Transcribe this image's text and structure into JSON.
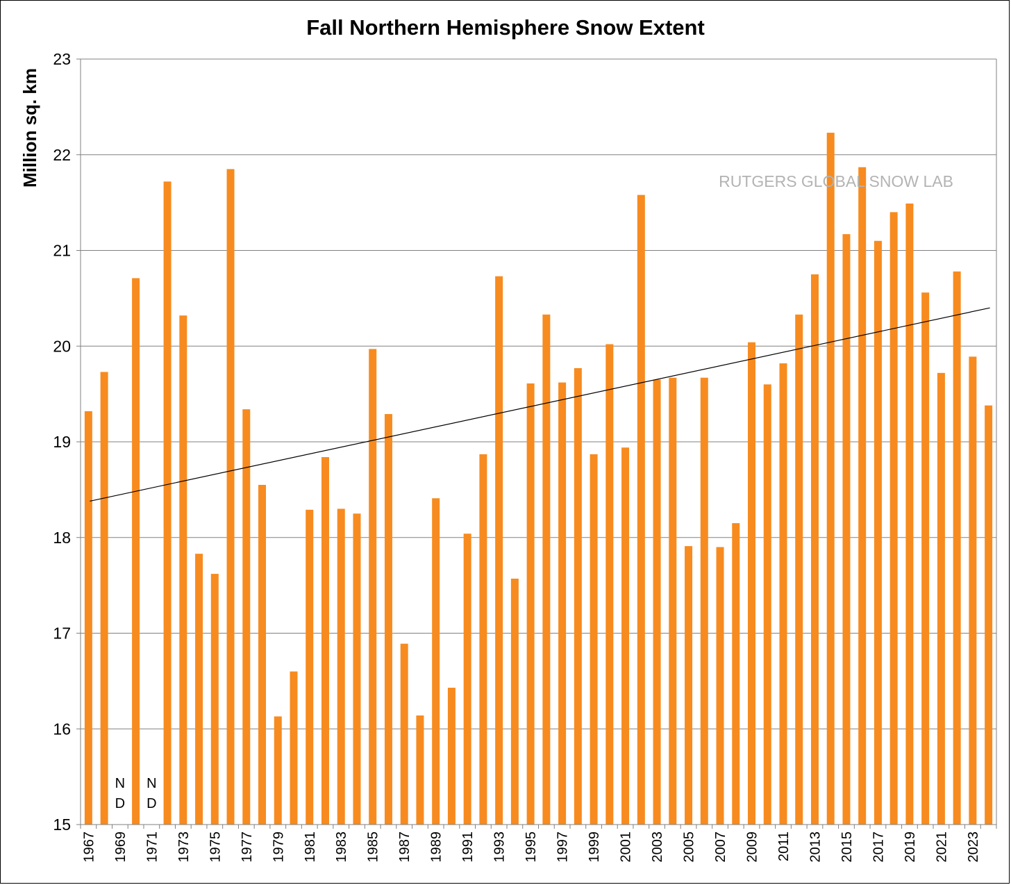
{
  "chart_data": {
    "type": "bar",
    "title": "Fall Northern Hemisphere Snow Extent",
    "ylabel": "Million sq. km",
    "xlabel": "",
    "ylim": [
      15,
      23
    ],
    "yticks": [
      15,
      16,
      17,
      18,
      19,
      20,
      21,
      22,
      23
    ],
    "grid": true,
    "bar_color": "#F78B1F",
    "watermark": "RUTGERS GLOBAL SNOW LAB",
    "no_data_label": [
      "N",
      "D"
    ],
    "categories": [
      1967,
      1968,
      1969,
      1970,
      1971,
      1972,
      1973,
      1974,
      1975,
      1976,
      1977,
      1978,
      1979,
      1980,
      1981,
      1982,
      1983,
      1984,
      1985,
      1986,
      1987,
      1988,
      1989,
      1990,
      1991,
      1992,
      1993,
      1994,
      1995,
      1996,
      1997,
      1998,
      1999,
      2000,
      2001,
      2002,
      2003,
      2004,
      2005,
      2006,
      2007,
      2008,
      2009,
      2010,
      2011,
      2012,
      2013,
      2014,
      2015,
      2016,
      2017,
      2018,
      2019,
      2020,
      2021,
      2022,
      2023,
      2024
    ],
    "tick_labels": [
      "1967",
      "1969",
      "1971",
      "1973",
      "1975",
      "1977",
      "1979",
      "1981",
      "1983",
      "1985",
      "1987",
      "1989",
      "1991",
      "1993",
      "1995",
      "1997",
      "1999",
      "2001",
      "2003",
      "2005",
      "2007",
      "2009",
      "2011",
      "2013",
      "2015",
      "2017",
      "2019",
      "2021",
      "2023"
    ],
    "values": [
      19.32,
      19.73,
      null,
      20.71,
      null,
      21.72,
      20.32,
      17.83,
      17.62,
      21.85,
      19.34,
      18.55,
      16.13,
      16.6,
      18.29,
      18.84,
      18.3,
      18.25,
      19.97,
      19.29,
      16.89,
      16.14,
      18.41,
      16.43,
      18.04,
      18.87,
      20.73,
      17.57,
      19.61,
      20.33,
      19.62,
      19.77,
      18.87,
      20.02,
      18.94,
      21.58,
      19.65,
      19.67,
      17.91,
      19.67,
      17.9,
      18.15,
      20.04,
      19.6,
      19.82,
      20.33,
      20.75,
      22.23,
      21.17,
      21.87,
      21.1,
      21.4,
      21.49,
      20.56,
      19.72,
      20.78,
      19.89,
      19.38
    ],
    "trend": {
      "start": [
        1967,
        18.38
      ],
      "end": [
        2024,
        20.4
      ]
    }
  }
}
